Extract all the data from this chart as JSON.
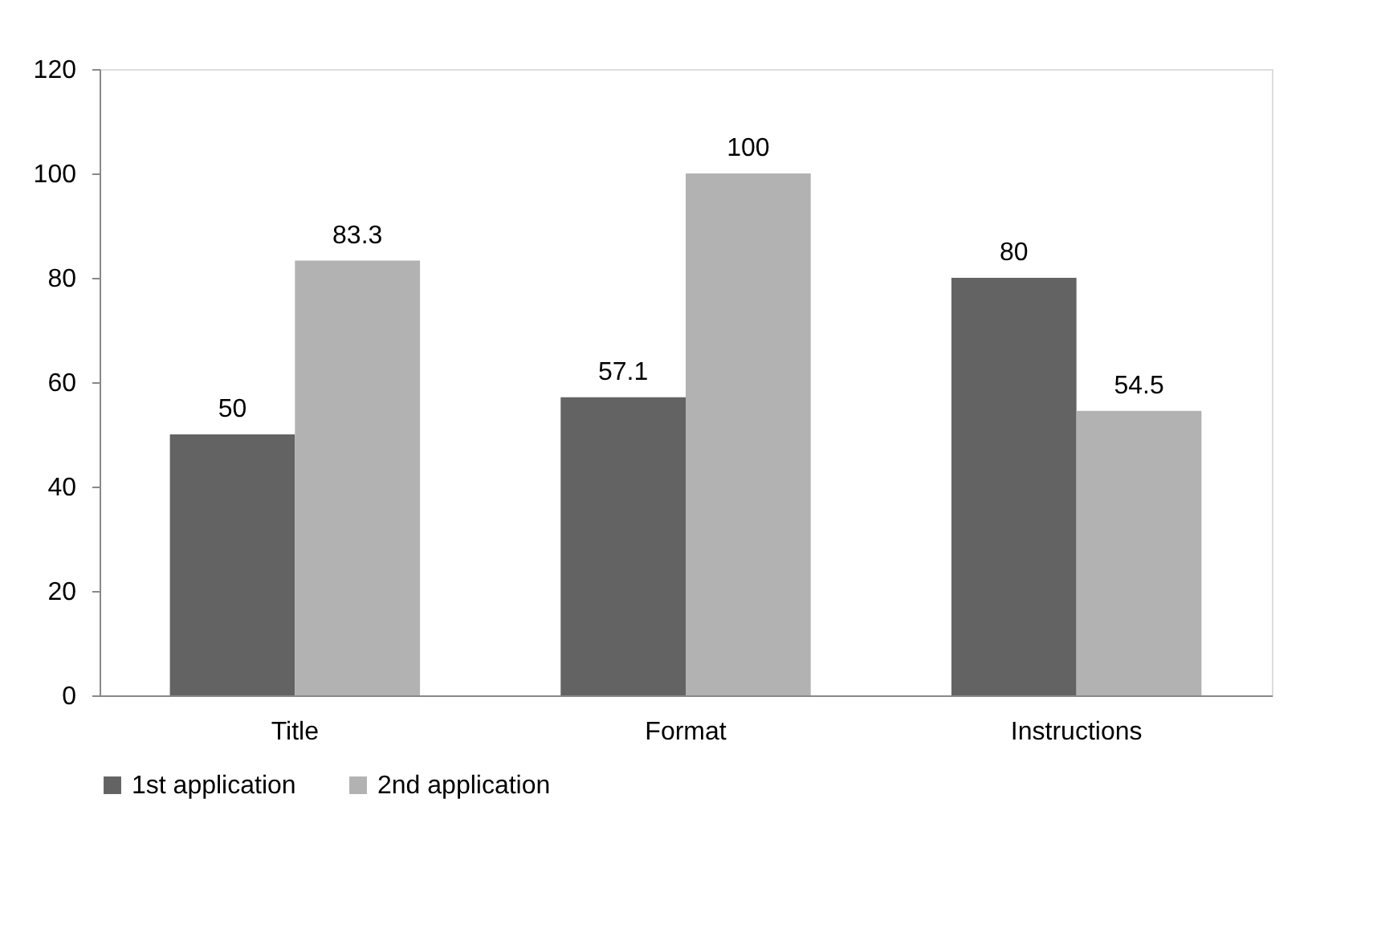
{
  "chart_data": {
    "type": "bar",
    "categories": [
      "Title",
      "Format",
      "Instructions"
    ],
    "series": [
      {
        "name": "1st application",
        "color": "#636363",
        "values": [
          50,
          57.1,
          80
        ]
      },
      {
        "name": "2nd application",
        "color": "#b2b2b2",
        "values": [
          83.3,
          100,
          54.5
        ]
      }
    ],
    "ylim": [
      0,
      120
    ],
    "yticks": [
      0,
      20,
      40,
      60,
      80,
      100,
      120
    ],
    "grid": false,
    "legend": "bottom",
    "data_labels": true
  }
}
